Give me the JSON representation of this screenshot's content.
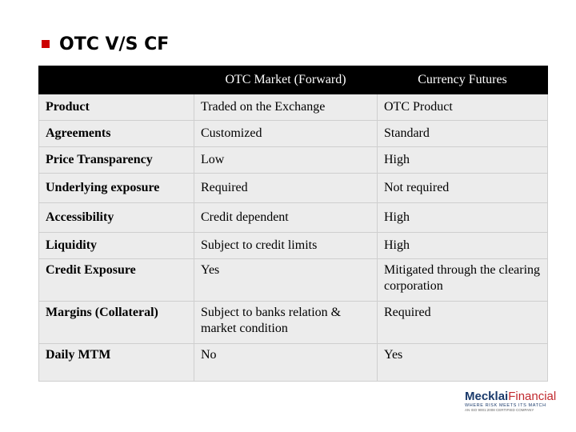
{
  "slide": {
    "title": "OTC V/S CF"
  },
  "table": {
    "headers": [
      "",
      "OTC Market (Forward)",
      "Currency Futures"
    ],
    "rows": [
      [
        "Product",
        "Traded on the Exchange",
        "OTC Product"
      ],
      [
        "Agreements",
        "Customized",
        "Standard"
      ],
      [
        "Price Transparency",
        "Low",
        "High"
      ],
      [
        "Underlying exposure",
        "Required",
        "Not required"
      ],
      [
        "Accessibility",
        "Credit dependent",
        "High"
      ],
      [
        "Liquidity",
        "Subject to credit limits",
        "High"
      ],
      [
        "Credit Exposure",
        "Yes",
        "Mitigated through the clearing corporation"
      ],
      [
        "Margins (Collateral)",
        "Subject to banks relation & market condition",
        "Required"
      ],
      [
        "Daily MTM",
        "No",
        "Yes"
      ]
    ]
  },
  "logo": {
    "name_part1": "Mecklai",
    "name_part2": "Financial",
    "tagline": "WHERE RISK MEETS ITS MATCH",
    "subline": "AN ISO 9001:2008 CERTIFIED COMPANY"
  }
}
